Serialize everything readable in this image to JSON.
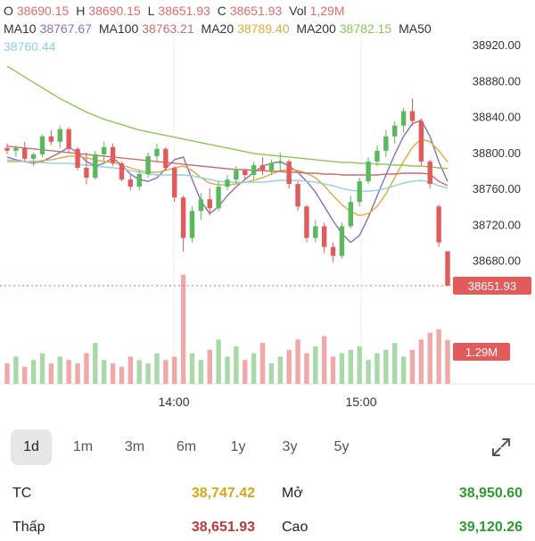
{
  "legend": {
    "o_label": "O",
    "o_value": "38690.15",
    "h_label": "H",
    "h_value": "38690.15",
    "l_label": "L",
    "l_value": "38651.93",
    "c_label": "C",
    "c_value": "38651.93",
    "vol_label": "Vol",
    "vol_value": "1,29M",
    "ma10_label": "MA10",
    "ma10_value": "38767.67",
    "ma100_label": "MA100",
    "ma100_value": "38763.21",
    "ma20_label": "MA20",
    "ma20_value": "38789.40",
    "ma200_label": "MA200",
    "ma200_value": "38782.15",
    "ma50_label": "MA50",
    "ma50_value": "38760.44"
  },
  "colors": {
    "up": "#5cb85c",
    "down": "#e05c5c",
    "ma10": "#8a6fb0",
    "ma20": "#e0a93a",
    "ma50": "#8ecfe6",
    "ma100": "#c96f6f",
    "ma200": "#8cc653"
  },
  "chart_data": {
    "type": "candlestick",
    "y_ticks": [
      "38920.00",
      "38880.00",
      "38840.00",
      "38800.00",
      "38760.00",
      "38720.00",
      "38680.00"
    ],
    "y_range": [
      38640,
      38920
    ],
    "x_ticks": [
      "14:00",
      "15:00"
    ],
    "last_price_label": "38651.93",
    "last_price": 38651.93,
    "volume_label": "1.29M",
    "series": [
      {
        "name": "MA10",
        "values": [
          38795,
          38792,
          38790,
          38788,
          38790,
          38795,
          38800,
          38806,
          38800,
          38790,
          38785,
          38788,
          38794,
          38786,
          38776,
          38770,
          38768,
          38772,
          38782,
          38792,
          38795,
          38770,
          38746,
          38732,
          38740,
          38752,
          38762,
          38770,
          38778,
          38785,
          38788,
          38790,
          38785,
          38778,
          38768,
          38756,
          38740,
          38724,
          38710,
          38700,
          38708,
          38728,
          38752,
          38775,
          38798,
          38818,
          38832,
          38836,
          38818,
          38790,
          38767.67
        ]
      },
      {
        "name": "MA20",
        "values": [
          38790,
          38790,
          38790,
          38790,
          38791,
          38792,
          38794,
          38796,
          38796,
          38794,
          38792,
          38790,
          38789,
          38786,
          38783,
          38780,
          38778,
          38778,
          38780,
          38783,
          38785,
          38780,
          38772,
          38766,
          38764,
          38764,
          38765,
          38767,
          38769,
          38772,
          38776,
          38780,
          38781,
          38780,
          38777,
          38772,
          38763,
          38752,
          38742,
          38734,
          38730,
          38732,
          38740,
          38754,
          38772,
          38790,
          38806,
          38815,
          38812,
          38802,
          38789.4
        ]
      },
      {
        "name": "MA50",
        "values": [
          38792,
          38791,
          38790,
          38789,
          38789,
          38788,
          38788,
          38788,
          38787,
          38786,
          38785,
          38784,
          38783,
          38782,
          38780,
          38778,
          38776,
          38775,
          38775,
          38775,
          38775,
          38774,
          38772,
          38770,
          38768,
          38767,
          38767,
          38767,
          38767,
          38767,
          38768,
          38769,
          38769,
          38769,
          38768,
          38767,
          38765,
          38763,
          38760,
          38758,
          38757,
          38757,
          38758,
          38760,
          38763,
          38766,
          38768,
          38769,
          38767,
          38763,
          38760.44
        ]
      },
      {
        "name": "MA100",
        "values": [
          38807,
          38806,
          38805,
          38804,
          38803,
          38802,
          38801,
          38800,
          38799,
          38798,
          38797,
          38796,
          38795,
          38794,
          38793,
          38792,
          38791,
          38790,
          38789,
          38788,
          38787,
          38786,
          38785,
          38784,
          38783,
          38782,
          38781,
          38781,
          38780,
          38780,
          38779,
          38779,
          38778,
          38778,
          38777,
          38777,
          38776,
          38776,
          38775,
          38775,
          38775,
          38775,
          38775,
          38776,
          38776,
          38777,
          38777,
          38777,
          38776,
          38768,
          38763.21
        ]
      },
      {
        "name": "MA200",
        "values": [
          38896,
          38890,
          38884,
          38878,
          38872,
          38866,
          38860,
          38855,
          38850,
          38845,
          38841,
          38837,
          38834,
          38831,
          38828,
          38825,
          38823,
          38821,
          38819,
          38817,
          38815,
          38813,
          38811,
          38809,
          38807,
          38805,
          38803,
          38801,
          38799,
          38798,
          38797,
          38796,
          38795,
          38794,
          38793,
          38792,
          38791,
          38790,
          38789,
          38789,
          38788,
          38788,
          38787,
          38787,
          38786,
          38786,
          38785,
          38785,
          38784,
          38783,
          38782.15
        ]
      }
    ],
    "candles": [
      [
        38805,
        38810,
        38798,
        38802
      ],
      [
        38802,
        38808,
        38795,
        38805
      ],
      [
        38805,
        38812,
        38790,
        38793
      ],
      [
        38793,
        38800,
        38785,
        38798
      ],
      [
        38798,
        38820,
        38795,
        38818
      ],
      [
        38818,
        38825,
        38808,
        38812
      ],
      [
        38812,
        38830,
        38805,
        38826
      ],
      [
        38826,
        38828,
        38800,
        38804
      ],
      [
        38804,
        38806,
        38780,
        38783
      ],
      [
        38783,
        38800,
        38765,
        38772
      ],
      [
        38772,
        38802,
        38770,
        38798
      ],
      [
        38798,
        38812,
        38790,
        38806
      ],
      [
        38806,
        38810,
        38785,
        38788
      ],
      [
        38788,
        38790,
        38768,
        38770
      ],
      [
        38770,
        38775,
        38758,
        38762
      ],
      [
        38762,
        38780,
        38758,
        38776
      ],
      [
        38776,
        38800,
        38772,
        38796
      ],
      [
        38796,
        38810,
        38790,
        38804
      ],
      [
        38804,
        38806,
        38780,
        38783
      ],
      [
        38783,
        38785,
        38745,
        38750
      ],
      [
        38750,
        38752,
        38690,
        38705
      ],
      [
        38705,
        38740,
        38700,
        38735
      ],
      [
        38735,
        38755,
        38725,
        38748
      ],
      [
        38748,
        38760,
        38730,
        38738
      ],
      [
        38738,
        38768,
        38735,
        38762
      ],
      [
        38762,
        38775,
        38758,
        38770
      ],
      [
        38770,
        38785,
        38765,
        38780
      ],
      [
        38780,
        38782,
        38770,
        38775
      ],
      [
        38775,
        38790,
        38770,
        38786
      ],
      [
        38786,
        38795,
        38775,
        38780
      ],
      [
        38780,
        38792,
        38775,
        38788
      ],
      [
        38788,
        38800,
        38780,
        38790
      ],
      [
        38790,
        38792,
        38760,
        38765
      ],
      [
        38765,
        38768,
        38735,
        38740
      ],
      [
        38740,
        38742,
        38700,
        38705
      ],
      [
        38705,
        38725,
        38700,
        38718
      ],
      [
        38718,
        38722,
        38688,
        38695
      ],
      [
        38695,
        38700,
        38678,
        38685
      ],
      [
        38685,
        38722,
        38682,
        38718
      ],
      [
        38718,
        38752,
        38715,
        38745
      ],
      [
        38745,
        38772,
        38740,
        38768
      ],
      [
        38768,
        38795,
        38765,
        38790
      ],
      [
        38790,
        38808,
        38785,
        38802
      ],
      [
        38802,
        38825,
        38795,
        38818
      ],
      [
        38818,
        38835,
        38810,
        38830
      ],
      [
        38830,
        38850,
        38822,
        38846
      ],
      [
        38846,
        38860,
        38830,
        38835
      ],
      [
        38835,
        38838,
        38785,
        38790
      ],
      [
        38790,
        38792,
        38760,
        38765
      ],
      [
        38740,
        38742,
        38695,
        38700
      ],
      [
        38690.15,
        38690.15,
        38651.93,
        38651.93
      ]
    ],
    "volumes": [
      0.6,
      0.8,
      0.5,
      0.7,
      0.9,
      0.6,
      0.8,
      0.7,
      0.6,
      0.9,
      1.2,
      0.7,
      0.6,
      0.5,
      0.8,
      0.7,
      0.6,
      0.9,
      0.7,
      0.8,
      3.2,
      0.9,
      0.7,
      1.0,
      1.3,
      0.8,
      1.1,
      0.7,
      0.9,
      1.2,
      0.6,
      0.8,
      1.0,
      1.3,
      0.9,
      1.1,
      1.4,
      0.8,
      0.9,
      1.0,
      1.1,
      0.7,
      0.9,
      1.0,
      1.2,
      0.8,
      1.0,
      1.3,
      1.5,
      1.6,
      1.29
    ]
  },
  "periods": {
    "items": [
      "1d",
      "1m",
      "3m",
      "6m",
      "1y",
      "3y",
      "5y"
    ],
    "active": "1d"
  },
  "stats": {
    "tc_label": "TC",
    "tc_value": "38,747.42",
    "mo_label": "Mở",
    "mo_value": "38,950.60",
    "thap_label": "Thấp",
    "thap_value": "38,651.93",
    "cao_label": "Cao",
    "cao_value": "39,120.26"
  }
}
